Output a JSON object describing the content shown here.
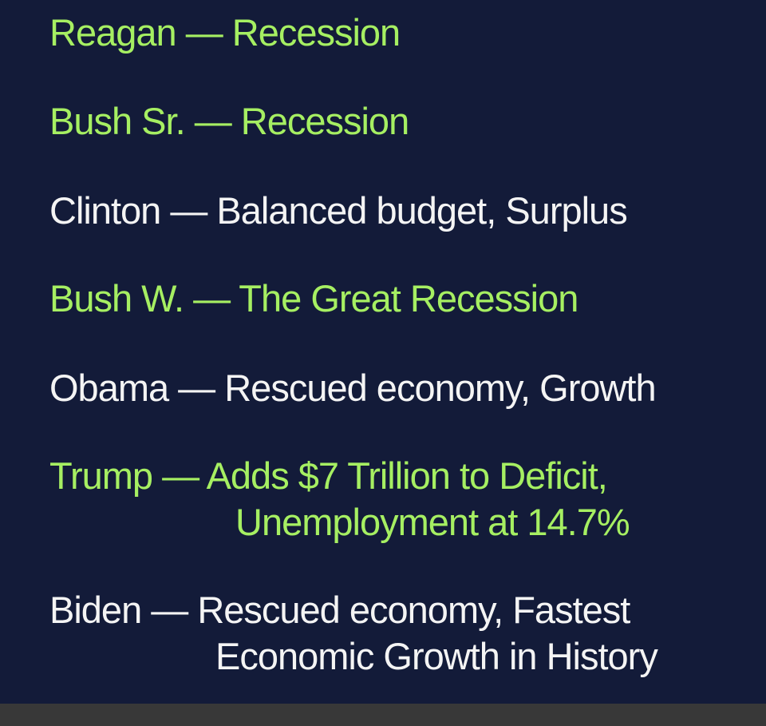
{
  "colors": {
    "background": "#131b39",
    "green": "#a6ef62",
    "white": "#f4f4f4",
    "bottom_bar": "#383838"
  },
  "items": [
    {
      "lines": [
        "Reagan — Recession"
      ],
      "color": "green"
    },
    {
      "lines": [
        "Bush Sr. — Recession"
      ],
      "color": "green"
    },
    {
      "lines": [
        "Clinton — Balanced budget, Surplus"
      ],
      "color": "white"
    },
    {
      "lines": [
        "Bush W. — The Great Recession"
      ],
      "color": "green"
    },
    {
      "lines": [
        "Obama — Rescued economy, Growth"
      ],
      "color": "white"
    },
    {
      "lines": [
        "Trump — Adds $7 Trillion to Deficit,",
        "Unemployment at 14.7%"
      ],
      "color": "green"
    },
    {
      "lines": [
        "Biden — Rescued economy,  Fastest",
        "Economic Growth in History"
      ],
      "color": "white"
    }
  ]
}
